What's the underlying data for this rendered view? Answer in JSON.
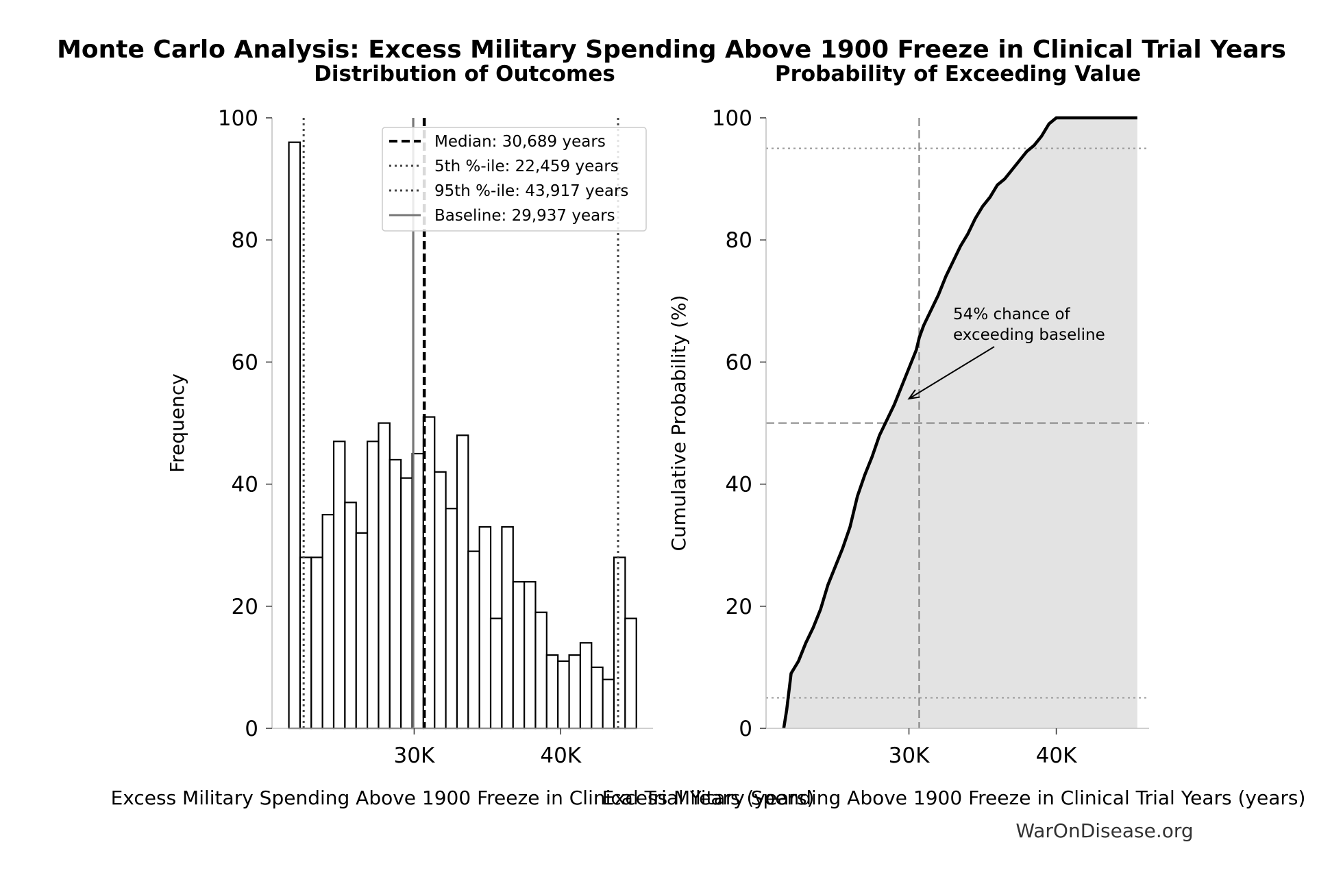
{
  "title": "Monte Carlo Analysis: Excess Military Spending Above 1900 Freeze in Clinical Trial Years",
  "watermark": "WarOnDisease.org",
  "chart_data": [
    {
      "type": "bar",
      "subtitle": "Distribution of Outcomes",
      "xlabel": "Excess Military Spending Above 1900 Freeze in Clinical Trial Years (years)",
      "ylabel": "Frequency",
      "xlim": [
        20300,
        46300
      ],
      "ylim": [
        0,
        100
      ],
      "xticks": [
        {
          "value": 30000,
          "label": "30K"
        },
        {
          "value": 40000,
          "label": "40K"
        }
      ],
      "yticks": [
        0,
        20,
        40,
        60,
        80,
        100
      ],
      "grid": false,
      "legend_position": "top-right",
      "bins": {
        "start": 21450,
        "width": 765,
        "counts": [
          96,
          28,
          28,
          35,
          47,
          37,
          32,
          47,
          50,
          44,
          41,
          45,
          51,
          42,
          36,
          48,
          29,
          33,
          18,
          33,
          24,
          24,
          19,
          12,
          11,
          12,
          14,
          10,
          8,
          28,
          18
        ]
      },
      "reference_lines": [
        {
          "name": "median",
          "label": "Median: 30,689 years",
          "value": 30689,
          "style": "dashed",
          "color": "#000000"
        },
        {
          "name": "p5",
          "label": "5th %-ile: 22,459 years",
          "value": 22459,
          "style": "dotted",
          "color": "#444444"
        },
        {
          "name": "p95",
          "label": "95th %-ile: 43,917 years",
          "value": 43917,
          "style": "dotted",
          "color": "#444444"
        },
        {
          "name": "baseline",
          "label": "Baseline: 29,937 years",
          "value": 29937,
          "style": "solid",
          "color": "#777777"
        }
      ]
    },
    {
      "type": "line",
      "subtitle": "Probability of Exceeding Value",
      "xlabel": "Excess Military Spending Above 1900 Freeze in Clinical Trial Years (years)",
      "ylabel": "Cumulative Probability (%)",
      "xlim": [
        20300,
        46300
      ],
      "ylim": [
        0,
        100
      ],
      "xticks": [
        {
          "value": 30000,
          "label": "30K"
        },
        {
          "value": 40000,
          "label": "40K"
        }
      ],
      "yticks": [
        0,
        20,
        40,
        60,
        80,
        100
      ],
      "grid": false,
      "fill_color": "#e3e3e3",
      "series": [
        {
          "x": [
            21500,
            21700,
            22000,
            22500,
            23000,
            23500,
            24000,
            24500,
            25000,
            25500,
            26000,
            26500,
            27000,
            27500,
            28000,
            28500,
            29000,
            29500,
            30000,
            30500,
            30700,
            31000,
            31500,
            32000,
            32500,
            33000,
            33500,
            34000,
            34500,
            35000,
            35500,
            36000,
            36500,
            37000,
            37500,
            38000,
            38500,
            39000,
            39500,
            40000,
            40500,
            41000,
            41500,
            42000,
            42500,
            43000,
            43500,
            44000,
            44500,
            45000,
            45500
          ],
          "y": [
            0,
            3,
            9,
            11,
            14,
            16.5,
            19.5,
            23.5,
            26.5,
            29.5,
            33,
            38,
            41.5,
            44.5,
            48,
            50.5,
            53,
            56,
            59,
            62,
            64,
            66,
            68.5,
            71,
            74,
            76.5,
            79,
            81,
            83.5,
            85.5,
            87,
            89,
            90,
            91.5,
            93,
            94.5,
            95.5,
            97,
            99,
            100,
            100,
            100,
            100,
            100,
            100,
            100,
            100,
            100,
            100,
            100,
            100
          ]
        }
      ],
      "reference_lines": [
        {
          "name": "baseline-vertical",
          "axis": "x",
          "value": 30689,
          "style": "dashed",
          "color": "#808080"
        },
        {
          "name": "fifty-horizontal",
          "axis": "y",
          "value": 50,
          "style": "dashed",
          "color": "#808080"
        },
        {
          "name": "p5-horizontal",
          "axis": "y",
          "value": 5,
          "style": "dotted",
          "color": "#999999"
        },
        {
          "name": "p95-horizontal",
          "axis": "y",
          "value": 95,
          "style": "dotted",
          "color": "#999999"
        }
      ],
      "annotation": {
        "lines": [
          "54% chance of",
          "exceeding baseline"
        ],
        "text_x": 33000,
        "text_y": 67,
        "arrow_x": 30000,
        "arrow_y": 54
      }
    }
  ]
}
